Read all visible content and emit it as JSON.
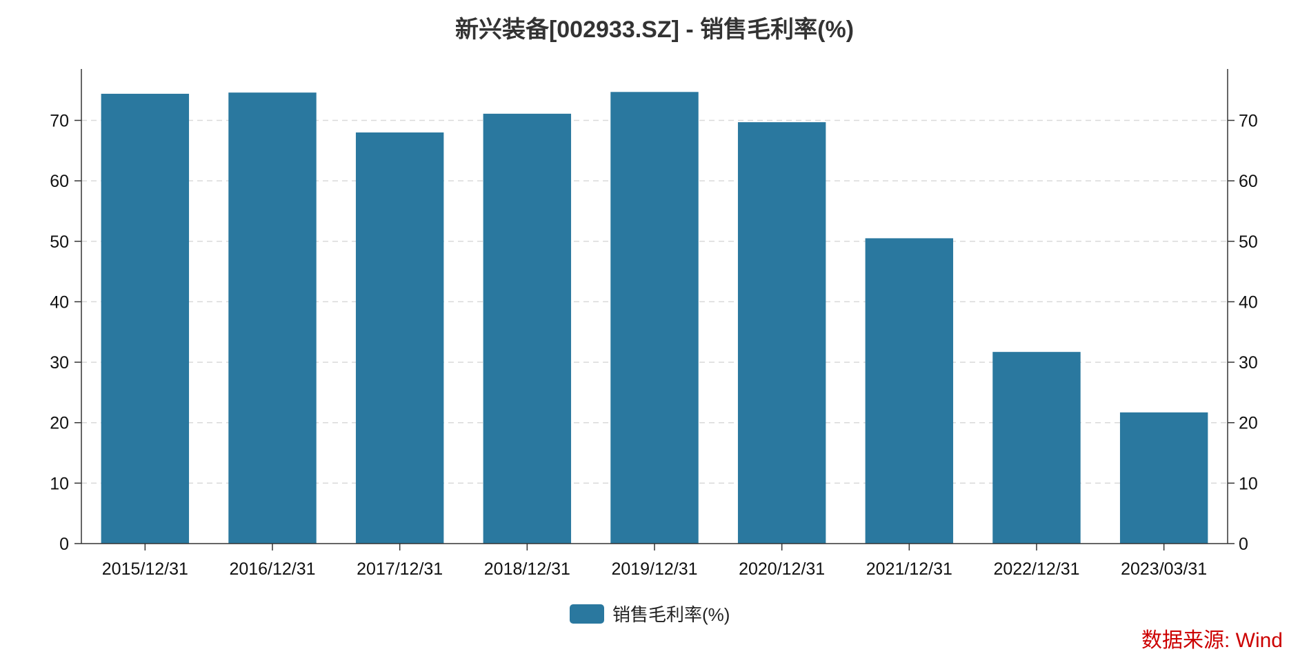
{
  "chart_data": {
    "type": "bar",
    "title": "新兴装备[002933.SZ] - 销售毛利率(%)",
    "categories": [
      "2015/12/31",
      "2016/12/31",
      "2017/12/31",
      "2018/12/31",
      "2019/12/31",
      "2020/12/31",
      "2021/12/31",
      "2022/12/31",
      "2023/03/31"
    ],
    "series": [
      {
        "name": "销售毛利率(%)",
        "values": [
          74.4,
          74.6,
          68.0,
          71.1,
          74.7,
          69.7,
          50.5,
          31.7,
          21.7
        ],
        "color": "#2a789f"
      }
    ],
    "yticks": [
      0,
      10,
      20,
      30,
      40,
      50,
      60,
      70
    ],
    "ylim": [
      0,
      78.5
    ],
    "dual_y_axis": true,
    "grid": "horizontal-dashed",
    "legend": "bottom-center",
    "source": "数据来源: Wind",
    "source_color": "#cc0000"
  }
}
